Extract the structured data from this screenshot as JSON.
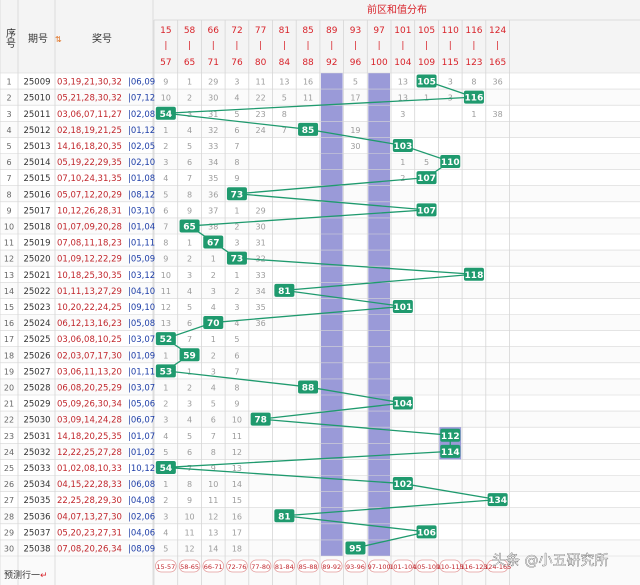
{
  "header": {
    "seq_label": "序号",
    "period_label": "期号",
    "draw_label": "奖号",
    "group_title": "前区和值分布"
  },
  "columns": [
    {
      "top": "15",
      "bottom": "57"
    },
    {
      "top": "58",
      "bottom": "65"
    },
    {
      "top": "66",
      "bottom": "71"
    },
    {
      "top": "72",
      "bottom": "76"
    },
    {
      "top": "77",
      "bottom": "80"
    },
    {
      "top": "81",
      "bottom": "84"
    },
    {
      "top": "85",
      "bottom": "88"
    },
    {
      "top": "89",
      "bottom": "92"
    },
    {
      "top": "93",
      "bottom": "96"
    },
    {
      "top": "97",
      "bottom": "100"
    },
    {
      "top": "101",
      "bottom": "104"
    },
    {
      "top": "105",
      "bottom": "109"
    },
    {
      "top": "110",
      "bottom": "115"
    },
    {
      "top": "116",
      "bottom": "123"
    },
    {
      "top": "124",
      "bottom": "165"
    }
  ],
  "highlight_columns": [
    7,
    9
  ],
  "rows": [
    {
      "seq": "1",
      "period": "25009",
      "front": "03,19,21,30,32",
      "back": "06,09",
      "sum": 105,
      "col": 11,
      "miss": [
        "9",
        "1",
        "29",
        "3",
        "11",
        "13",
        "16",
        "",
        "5",
        "",
        "13",
        "",
        "3",
        "8",
        "36"
      ]
    },
    {
      "seq": "2",
      "period": "25010",
      "front": "05,21,28,30,32",
      "back": "07,12",
      "sum": 116,
      "col": 13,
      "miss": [
        "10",
        "2",
        "30",
        "4",
        "22",
        "5",
        "11",
        "",
        "17",
        "",
        "13",
        "1",
        "3",
        "",
        ""
      ]
    },
    {
      "seq": "3",
      "period": "25011",
      "front": "03,06,07,11,27",
      "back": "02,08",
      "sum": 54,
      "col": 0,
      "miss": [
        "",
        "3",
        "31",
        "5",
        "23",
        "8",
        "",
        "",
        "",
        "",
        "3",
        "",
        "",
        "1",
        "38"
      ]
    },
    {
      "seq": "4",
      "period": "25012",
      "front": "02,18,19,21,25",
      "back": "01,12",
      "sum": 85,
      "col": 6,
      "miss": [
        "1",
        "4",
        "32",
        "6",
        "24",
        "7",
        "",
        "",
        "19",
        "",
        "",
        "",
        "",
        "",
        ""
      ]
    },
    {
      "seq": "5",
      "period": "25013",
      "front": "14,16,18,20,35",
      "back": "02,05",
      "sum": 103,
      "col": 10,
      "miss": [
        "2",
        "5",
        "33",
        "7",
        "",
        "",
        "",
        "",
        "30",
        "",
        "",
        "",
        "",
        "",
        ""
      ]
    },
    {
      "seq": "6",
      "period": "25014",
      "front": "05,19,22,29,35",
      "back": "02,10",
      "sum": 110,
      "col": 12,
      "miss": [
        "3",
        "6",
        "34",
        "8",
        "",
        "",
        "",
        "",
        "",
        "",
        "1",
        "5",
        "",
        "",
        ""
      ]
    },
    {
      "seq": "7",
      "period": "25015",
      "front": "07,10,24,31,35",
      "back": "01,08",
      "sum": 107,
      "col": 11,
      "miss": [
        "4",
        "7",
        "35",
        "9",
        "",
        "",
        "",
        "",
        "",
        "",
        "2",
        "",
        "",
        "",
        ""
      ]
    },
    {
      "seq": "8",
      "period": "25016",
      "front": "05,07,12,20,29",
      "back": "08,12",
      "sum": 73,
      "col": 3,
      "miss": [
        "5",
        "8",
        "36",
        "",
        "",
        "",
        "",
        "",
        "",
        "",
        "",
        "",
        "",
        "",
        ""
      ]
    },
    {
      "seq": "9",
      "period": "25017",
      "front": "10,12,26,28,31",
      "back": "03,10",
      "sum": 107,
      "col": 11,
      "miss": [
        "6",
        "9",
        "37",
        "1",
        "29",
        "",
        "",
        "",
        "",
        "",
        "",
        "",
        "",
        "",
        ""
      ]
    },
    {
      "seq": "10",
      "period": "25018",
      "front": "01,07,09,20,28",
      "back": "01,04",
      "sum": 65,
      "col": 1,
      "miss": [
        "7",
        "",
        "38",
        "2",
        "30",
        "",
        "",
        "",
        "",
        "",
        "",
        "",
        "",
        "",
        ""
      ]
    },
    {
      "seq": "11",
      "period": "25019",
      "front": "07,08,11,18,23",
      "back": "01,11",
      "sum": 67,
      "col": 2,
      "miss": [
        "8",
        "1",
        "",
        "3",
        "31",
        "",
        "",
        "",
        "",
        "",
        "",
        "",
        "",
        "",
        ""
      ]
    },
    {
      "seq": "12",
      "period": "25020",
      "front": "01,09,12,22,29",
      "back": "05,09",
      "sum": 73,
      "col": 3,
      "miss": [
        "9",
        "2",
        "1",
        "",
        "32",
        "",
        "",
        "",
        "",
        "",
        "",
        "",
        "",
        "",
        ""
      ]
    },
    {
      "seq": "13",
      "period": "25021",
      "front": "10,18,25,30,35",
      "back": "03,12",
      "sum": 118,
      "col": 13,
      "miss": [
        "10",
        "3",
        "2",
        "1",
        "33",
        "",
        "",
        "",
        "",
        "",
        "",
        "",
        "",
        "",
        ""
      ]
    },
    {
      "seq": "14",
      "period": "25022",
      "front": "01,11,13,27,29",
      "back": "04,10",
      "sum": 81,
      "col": 5,
      "miss": [
        "11",
        "4",
        "3",
        "2",
        "34",
        "",
        "",
        "",
        "",
        "",
        "",
        "",
        "",
        "",
        ""
      ]
    },
    {
      "seq": "15",
      "period": "25023",
      "front": "10,20,22,24,25",
      "back": "09,10",
      "sum": 101,
      "col": 10,
      "miss": [
        "12",
        "5",
        "4",
        "3",
        "35",
        "",
        "",
        "",
        "",
        "",
        "",
        "",
        "",
        "",
        ""
      ]
    },
    {
      "seq": "16",
      "period": "25024",
      "front": "06,12,13,16,23",
      "back": "05,08",
      "sum": 70,
      "col": 2,
      "miss": [
        "13",
        "6",
        "",
        "4",
        "36",
        "",
        "",
        "",
        "",
        "",
        "",
        "",
        "",
        "",
        ""
      ]
    },
    {
      "seq": "17",
      "period": "25025",
      "front": "03,06,08,10,25",
      "back": "03,07",
      "sum": 52,
      "col": 0,
      "miss": [
        "",
        "7",
        "1",
        "5",
        "",
        "",
        "",
        "",
        "",
        "",
        "",
        "",
        "",
        "",
        ""
      ]
    },
    {
      "seq": "18",
      "period": "25026",
      "front": "02,03,07,17,30",
      "back": "01,09",
      "sum": 59,
      "col": 1,
      "miss": [
        "1",
        "",
        "2",
        "6",
        "",
        "",
        "",
        "",
        "",
        "",
        "",
        "",
        "",
        "",
        ""
      ]
    },
    {
      "seq": "19",
      "period": "25027",
      "front": "03,06,11,13,20",
      "back": "01,11",
      "sum": 53,
      "col": 0,
      "miss": [
        "",
        "1",
        "3",
        "7",
        "",
        "",
        "",
        "",
        "",
        "",
        "",
        "",
        "",
        "",
        ""
      ]
    },
    {
      "seq": "20",
      "period": "25028",
      "front": "06,08,20,25,29",
      "back": "03,07",
      "sum": 88,
      "col": 6,
      "miss": [
        "1",
        "2",
        "4",
        "8",
        "",
        "",
        "",
        "",
        "",
        "",
        "",
        "",
        "",
        "",
        ""
      ]
    },
    {
      "seq": "21",
      "period": "25029",
      "front": "05,09,26,30,34",
      "back": "05,06",
      "sum": 104,
      "col": 10,
      "miss": [
        "2",
        "3",
        "5",
        "9",
        "",
        "",
        "",
        "",
        "",
        "",
        "",
        "",
        "",
        "",
        ""
      ]
    },
    {
      "seq": "22",
      "period": "25030",
      "front": "03,09,14,24,28",
      "back": "06,07",
      "sum": 78,
      "col": 4,
      "miss": [
        "3",
        "4",
        "6",
        "10",
        "",
        "",
        "",
        "",
        "",
        "",
        "",
        "",
        "",
        "",
        ""
      ]
    },
    {
      "seq": "23",
      "period": "25031",
      "front": "14,18,20,25,35",
      "back": "01,07",
      "sum": 112,
      "col": 12,
      "miss": [
        "4",
        "5",
        "7",
        "11",
        "",
        "",
        "",
        "",
        "",
        "",
        "",
        "",
        "",
        "",
        ""
      ]
    },
    {
      "seq": "24",
      "period": "25032",
      "front": "12,22,25,27,28",
      "back": "01,02",
      "sum": 114,
      "col": 12,
      "miss": [
        "5",
        "6",
        "8",
        "12",
        "",
        "",
        "",
        "",
        "",
        "",
        "",
        "",
        "",
        "",
        ""
      ]
    },
    {
      "seq": "25",
      "period": "25033",
      "front": "01,02,08,10,33",
      "back": "10,12",
      "sum": 54,
      "col": 0,
      "miss": [
        "",
        "7",
        "9",
        "13",
        "",
        "",
        "",
        "",
        "",
        "",
        "",
        "",
        "",
        "",
        ""
      ]
    },
    {
      "seq": "26",
      "period": "25034",
      "front": "04,15,22,28,33",
      "back": "06,08",
      "sum": 102,
      "col": 10,
      "miss": [
        "1",
        "8",
        "10",
        "14",
        "",
        "",
        "",
        "",
        "",
        "",
        "",
        "",
        "",
        "",
        ""
      ]
    },
    {
      "seq": "27",
      "period": "25035",
      "front": "22,25,28,29,30",
      "back": "04,08",
      "sum": 134,
      "col": 14,
      "miss": [
        "2",
        "9",
        "11",
        "15",
        "",
        "",
        "",
        "",
        "",
        "",
        "",
        "",
        "",
        "",
        ""
      ]
    },
    {
      "seq": "28",
      "period": "25036",
      "front": "04,07,13,27,30",
      "back": "02,06",
      "sum": 81,
      "col": 5,
      "miss": [
        "3",
        "10",
        "12",
        "16",
        "",
        "",
        "",
        "",
        "",
        "",
        "",
        "",
        "",
        "",
        ""
      ]
    },
    {
      "seq": "29",
      "period": "25037",
      "front": "05,20,23,27,31",
      "back": "04,06",
      "sum": 106,
      "col": 11,
      "miss": [
        "4",
        "11",
        "13",
        "17",
        "",
        "",
        "",
        "",
        "",
        "",
        "",
        "",
        "",
        "",
        ""
      ]
    },
    {
      "seq": "30",
      "period": "25038",
      "front": "07,08,20,26,34",
      "back": "08,09",
      "sum": 95,
      "col": 8,
      "miss": [
        "5",
        "12",
        "14",
        "18",
        "",
        "",
        "",
        "",
        "",
        "",
        "",
        "",
        "",
        "",
        ""
      ]
    }
  ],
  "predict_label": "预测行一",
  "predict_ranges": [
    "15-57",
    "58-65",
    "66-71",
    "72-76",
    "77-80",
    "81-84",
    "85-88",
    "89-92",
    "93-96",
    "97-100",
    "101-104",
    "105-109",
    "110-115",
    "116-123",
    "124-165"
  ],
  "watermark": "头条 @小五研究所",
  "colors": {
    "header_bg": "#f4f4f4",
    "header_text": "#d8232a",
    "grid": "#d6d6d6",
    "bar": "#9a9ad8",
    "bar_dark": "#7c7cc8",
    "ball": "#1f9a6e",
    "line": "#1f9a6e",
    "miss": "#9c9c9c",
    "front": "#c1272d",
    "back": "#1f3fa8"
  }
}
